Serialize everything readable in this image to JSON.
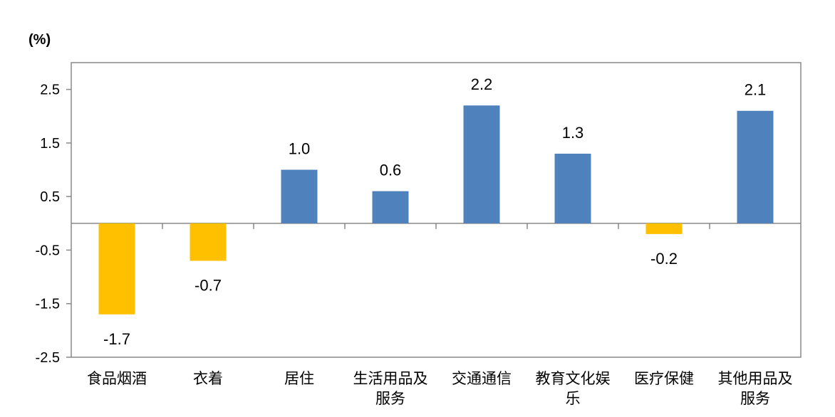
{
  "chart_data": {
    "type": "bar",
    "unit_label": "(%)",
    "categories": [
      [
        "食品烟酒"
      ],
      [
        "衣着"
      ],
      [
        "居住"
      ],
      [
        "生活用品及",
        "服务"
      ],
      [
        "交通通信"
      ],
      [
        "教育文化娱",
        "乐"
      ],
      [
        "医疗保健"
      ],
      [
        "其他用品及",
        "服务"
      ]
    ],
    "values": [
      -1.7,
      -0.7,
      1.0,
      0.6,
      2.2,
      1.3,
      -0.2,
      2.1
    ],
    "value_labels": [
      "-1.7",
      "-0.7",
      "1.0",
      "0.6",
      "2.2",
      "1.3",
      "-0.2",
      "2.1"
    ],
    "yticks": [
      2.5,
      1.5,
      0.5,
      -0.5,
      -1.5,
      -2.5
    ],
    "ytick_labels": [
      "2.5",
      "1.5",
      "0.5",
      "-0.5",
      "-1.5",
      "-2.5"
    ],
    "ylim": [
      -2.5,
      3.0
    ],
    "grid": false,
    "colors": {
      "positive": "#4F81BD",
      "negative": "#FFC000",
      "axis": "#898989"
    }
  }
}
